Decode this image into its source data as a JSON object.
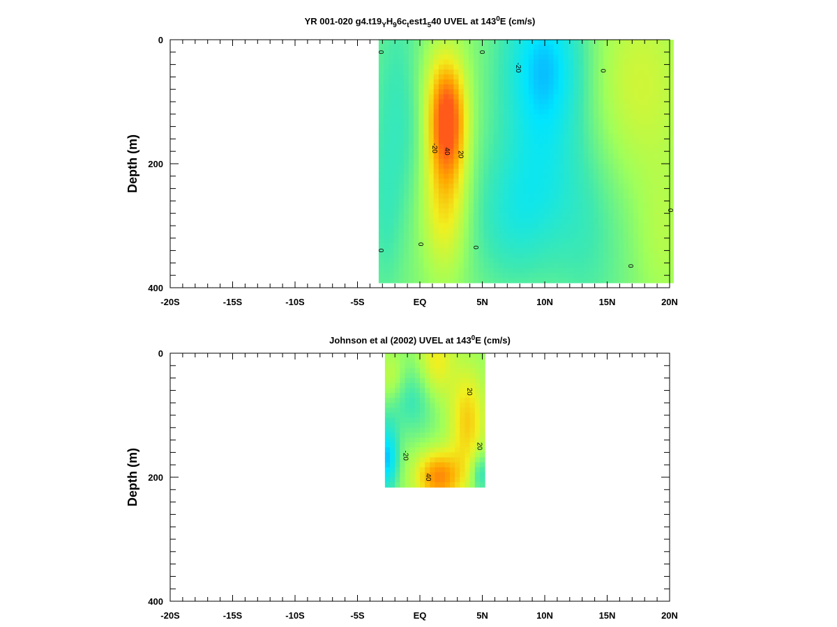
{
  "chart_data": [
    {
      "type": "heatmap",
      "title_parts": [
        "YR 001-020 g4.t19",
        "Y",
        "H",
        "9",
        "6c",
        "t",
        "est1",
        "5",
        "40 UVEL at 143",
        "0",
        "E (cm/s)"
      ],
      "ylabel": "Depth (m)",
      "x_ticks": [
        "-20S",
        "-15S",
        "-10S",
        "-5S",
        "EQ",
        "5N",
        "10N",
        "15N",
        "20N"
      ],
      "xlim": [
        -20,
        20
      ],
      "y_ticks": [
        "0",
        "200",
        "400"
      ],
      "ylim": [
        0,
        400
      ],
      "data_extent": {
        "x": [
          -3.3,
          20
        ],
        "depth": [
          0,
          385
        ]
      },
      "colormap": [
        "#1f5fff",
        "#00e5ff",
        "#3ee8b0",
        "#a0ff5a",
        "#f0f020",
        "#ffa500",
        "#ff5a1a"
      ],
      "background_value": 0,
      "features": [
        {
          "x": 2.2,
          "depth": 130,
          "sx": 1.0,
          "sd": 60,
          "value": 45
        },
        {
          "x": 2.0,
          "depth": 250,
          "sx": 1.3,
          "sd": 90,
          "value": 25
        },
        {
          "x": 1.5,
          "depth": 60,
          "sx": 1.6,
          "sd": 60,
          "value": 10
        },
        {
          "x": 10.0,
          "depth": 40,
          "sx": 2.4,
          "sd": 90,
          "value": -28
        },
        {
          "x": 9.5,
          "depth": 230,
          "sx": 2.6,
          "sd": 90,
          "value": -14
        },
        {
          "x": 7.0,
          "depth": 300,
          "sx": 2.4,
          "sd": 80,
          "value": -10
        },
        {
          "x": -1.5,
          "depth": 100,
          "sx": 1.6,
          "sd": 130,
          "value": -12
        },
        {
          "x": -2.8,
          "depth": 300,
          "sx": 1.0,
          "sd": 100,
          "value": -8
        },
        {
          "x": 17.5,
          "depth": 70,
          "sx": 3.0,
          "sd": 110,
          "value": 14
        },
        {
          "x": 19.5,
          "depth": 320,
          "sx": 1.5,
          "sd": 90,
          "value": 8
        },
        {
          "x": 13.5,
          "depth": 320,
          "sx": 2.0,
          "sd": 120,
          "value": -8
        }
      ],
      "contour_labels": [
        {
          "text": "0",
          "x": -3.3,
          "depth": 20
        },
        {
          "text": "0",
          "x": 4.8,
          "depth": 20
        },
        {
          "text": "-20",
          "x": 7.7,
          "depth": 45
        },
        {
          "text": "0",
          "x": 14.5,
          "depth": 50
        },
        {
          "text": "-20",
          "x": 1.0,
          "depth": 175
        },
        {
          "text": "40",
          "x": 2.0,
          "depth": 180
        },
        {
          "text": "20",
          "x": 3.1,
          "depth": 185
        },
        {
          "text": "0",
          "x": -3.3,
          "depth": 340
        },
        {
          "text": "0",
          "x": -0.1,
          "depth": 330
        },
        {
          "text": "0",
          "x": 4.3,
          "depth": 335
        },
        {
          "text": "0",
          "x": 16.7,
          "depth": 365
        },
        {
          "text": "0",
          "x": 19.9,
          "depth": 275
        }
      ]
    },
    {
      "type": "heatmap",
      "title_parts": [
        "Johnson et al (2002) UVEL at 143",
        "0",
        "E (cm/s)"
      ],
      "ylabel": "Depth (m)",
      "x_ticks": [
        "-20S",
        "-15S",
        "-10S",
        "-5S",
        "EQ",
        "5N",
        "10N",
        "15N",
        "20N"
      ],
      "xlim": [
        -20,
        20
      ],
      "y_ticks": [
        "0",
        "200",
        "400"
      ],
      "ylim": [
        0,
        400
      ],
      "data_extent": {
        "x": [
          -2.8,
          5
        ],
        "depth": [
          0,
          210
        ]
      },
      "colormap": [
        "#1f5fff",
        "#00e5ff",
        "#3ee8b0",
        "#a0ff5a",
        "#f0f020",
        "#ffa500",
        "#ff5a1a"
      ],
      "background_value": 2,
      "features": [
        {
          "x": 1.5,
          "depth": 200,
          "sx": 1.3,
          "sd": 30,
          "value": 38
        },
        {
          "x": 3.8,
          "depth": 110,
          "sx": 1.0,
          "sd": 60,
          "value": 25
        },
        {
          "x": 1.3,
          "depth": 15,
          "sx": 1.0,
          "sd": 50,
          "value": 20
        },
        {
          "x": -0.5,
          "depth": 75,
          "sx": 1.6,
          "sd": 40,
          "value": -14
        },
        {
          "x": -2.6,
          "depth": 170,
          "sx": 0.6,
          "sd": 40,
          "value": -30
        },
        {
          "x": -2.3,
          "depth": 40,
          "sx": 0.8,
          "sd": 30,
          "value": 12
        },
        {
          "x": 4.8,
          "depth": 195,
          "sx": 0.5,
          "sd": 25,
          "value": -18
        }
      ],
      "contour_labels": [
        {
          "text": "20",
          "x": 3.8,
          "depth": 62
        },
        {
          "text": "-20",
          "x": -1.3,
          "depth": 165
        },
        {
          "text": "20",
          "x": 4.6,
          "depth": 150
        },
        {
          "text": "40",
          "x": 0.5,
          "depth": 200
        }
      ]
    }
  ]
}
